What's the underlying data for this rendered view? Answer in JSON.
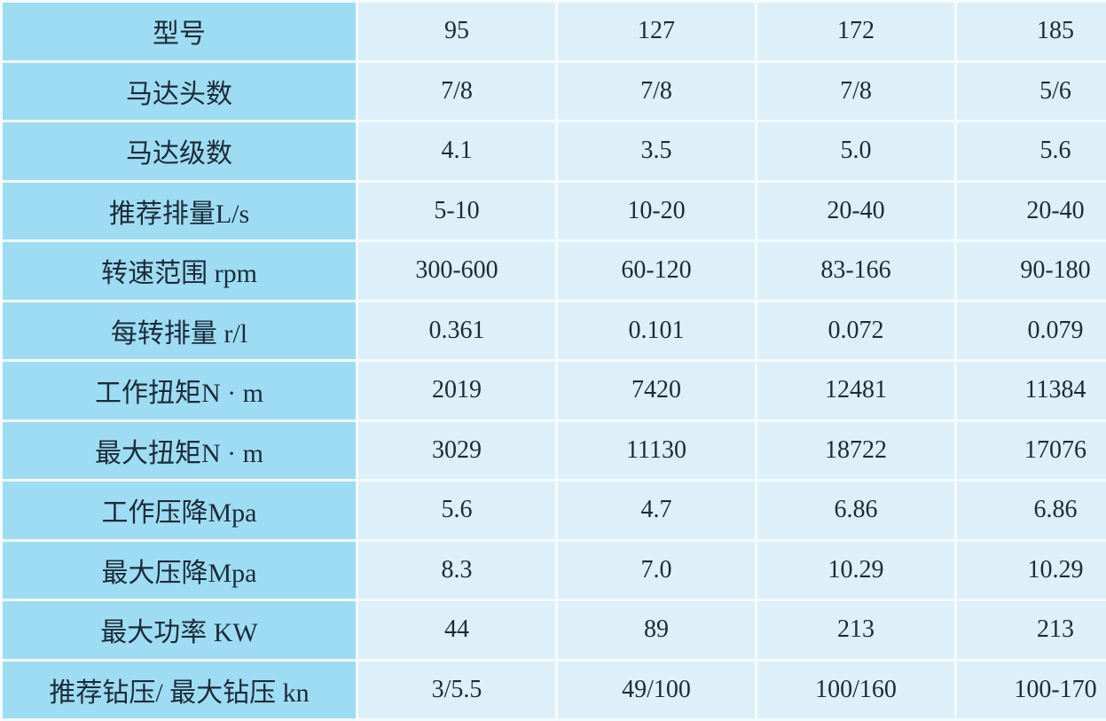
{
  "table": {
    "rows": [
      {
        "label": "型号",
        "values": [
          "95",
          "127",
          "172",
          "185"
        ]
      },
      {
        "label": "马达头数",
        "values": [
          "7/8",
          "7/8",
          "7/8",
          "5/6"
        ]
      },
      {
        "label": "马达级数",
        "values": [
          "4.1",
          "3.5",
          "5.0",
          "5.6"
        ]
      },
      {
        "label": "推荐排量L/s",
        "values": [
          "5-10",
          "10-20",
          "20-40",
          "20-40"
        ]
      },
      {
        "label": "转速范围 rpm",
        "values": [
          "300-600",
          "60-120",
          "83-166",
          "90-180"
        ]
      },
      {
        "label": "每转排量 r/l",
        "values": [
          "0.361",
          "0.101",
          "0.072",
          "0.079"
        ]
      },
      {
        "label": "工作扭矩N · m",
        "values": [
          "2019",
          "7420",
          "12481",
          "11384"
        ]
      },
      {
        "label": "最大扭矩N · m",
        "values": [
          "3029",
          "11130",
          "18722",
          "17076"
        ]
      },
      {
        "label": "工作压降Mpa",
        "values": [
          "5.6",
          "4.7",
          "6.86",
          "6.86"
        ]
      },
      {
        "label": "最大压降Mpa",
        "values": [
          "8.3",
          "7.0",
          "10.29",
          "10.29"
        ]
      },
      {
        "label": "最大功率 KW",
        "values": [
          "44",
          "89",
          "213",
          "213"
        ]
      },
      {
        "label": "推荐钻压/ 最大钻压 kn",
        "values": [
          "3/5.5",
          "49/100",
          "100/160",
          "100-170"
        ]
      }
    ]
  },
  "chart_data": {
    "type": "table",
    "row_headers": [
      "型号",
      "马达头数",
      "马达级数",
      "推荐排量L/s",
      "转速范围 rpm",
      "每转排量 r/l",
      "工作扭矩N · m",
      "最大扭矩N · m",
      "工作压降Mpa",
      "最大压降Mpa",
      "最大功率 KW",
      "推荐钻压/ 最大钻压 kn"
    ],
    "columns": [
      "95",
      "127",
      "172",
      "185"
    ],
    "cells": [
      [
        "95",
        "127",
        "172",
        "185"
      ],
      [
        "7/8",
        "7/8",
        "7/8",
        "5/6"
      ],
      [
        "4.1",
        "3.5",
        "5.0",
        "5.6"
      ],
      [
        "5-10",
        "10-20",
        "20-40",
        "20-40"
      ],
      [
        "300-600",
        "60-120",
        "83-166",
        "90-180"
      ],
      [
        "0.361",
        "0.101",
        "0.072",
        "0.079"
      ],
      [
        "2019",
        "7420",
        "12481",
        "11384"
      ],
      [
        "3029",
        "11130",
        "18722",
        "17076"
      ],
      [
        "5.6",
        "4.7",
        "6.86",
        "6.86"
      ],
      [
        "8.3",
        "7.0",
        "10.29",
        "10.29"
      ],
      [
        "44",
        "89",
        "213",
        "213"
      ],
      [
        "3/5.5",
        "49/100",
        "100/160",
        "100-170"
      ]
    ]
  },
  "colors": {
    "label_cell_bg": "#9edcf4",
    "data_cell_bg": "#ddf0fa",
    "grid_line": "#f4fbfe",
    "text": "#1c2b38"
  }
}
